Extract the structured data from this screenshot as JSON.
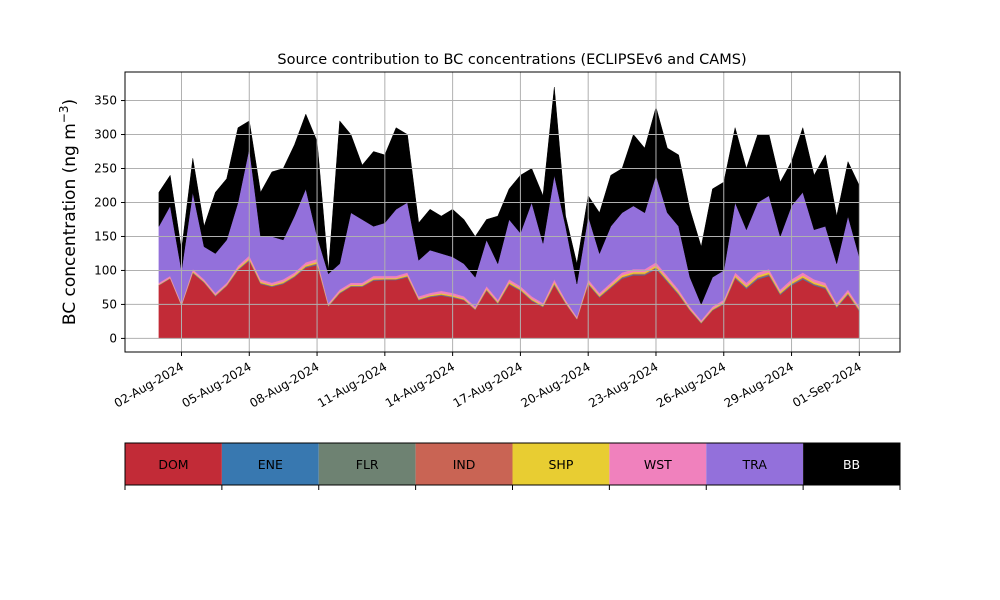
{
  "chart_data": {
    "type": "area",
    "stacked": true,
    "title": "Source contribution to BC concentrations (ECLIPSEv6 and CAMS)",
    "ylabel_main": "BC concentration (ng m",
    "ylabel_sup": "−3",
    "ylabel_close": ")",
    "xlabel": "",
    "ylim": [
      -20,
      392
    ],
    "yticks": [
      0,
      50,
      100,
      150,
      200,
      250,
      300,
      350
    ],
    "xlim": [
      -1.5,
      32.8
    ],
    "xtick_positions": [
      1,
      4,
      7,
      10,
      13,
      16,
      19,
      22,
      25,
      28,
      31
    ],
    "xtick_labels": [
      "02-Aug-2024",
      "05-Aug-2024",
      "08-Aug-2024",
      "11-Aug-2024",
      "14-Aug-2024",
      "17-Aug-2024",
      "20-Aug-2024",
      "23-Aug-2024",
      "26-Aug-2024",
      "29-Aug-2024",
      "01-Sep-2024"
    ],
    "grid": true,
    "legend": "colorbar-below",
    "series_order": [
      "DOM",
      "ENE",
      "FLR",
      "IND",
      "SHP",
      "WST",
      "TRA",
      "BB"
    ],
    "colors": {
      "DOM": "#c22b37",
      "ENE": "#3878b0",
      "FLR": "#6e8272",
      "IND": "#c96454",
      "SHP": "#e8cd32",
      "WST": "#f081bd",
      "TRA": "#9370db",
      "BB": "#000000"
    },
    "x_day": [
      0.0,
      0.5,
      1.0,
      1.5,
      2.0,
      2.5,
      3.0,
      3.5,
      4.0,
      4.5,
      5.0,
      5.5,
      6.0,
      6.5,
      7.0,
      7.5,
      8.0,
      8.5,
      9.0,
      9.5,
      10.0,
      10.5,
      11.0,
      11.5,
      12.0,
      12.5,
      13.0,
      13.5,
      14.0,
      14.5,
      15.0,
      15.5,
      16.0,
      16.5,
      17.0,
      17.5,
      18.0,
      18.5,
      19.0,
      19.5,
      20.0,
      20.5,
      21.0,
      21.5,
      22.0,
      22.5,
      23.0,
      23.5,
      24.0,
      24.5,
      25.0,
      25.5,
      26.0,
      26.5,
      27.0,
      27.5,
      28.0,
      28.5,
      29.0,
      29.5,
      30.0,
      30.5,
      31.0
    ],
    "base_cum": [
      80,
      90,
      50,
      100,
      85,
      65,
      80,
      105,
      120,
      85,
      80,
      85,
      95,
      110,
      115,
      50,
      70,
      80,
      80,
      90,
      90,
      90,
      95,
      60,
      65,
      68,
      65,
      60,
      45,
      75,
      55,
      85,
      75,
      60,
      50,
      85,
      55,
      30,
      85,
      65,
      80,
      95,
      100,
      100,
      110,
      90,
      70,
      45,
      25,
      45,
      55,
      95,
      80,
      95,
      100,
      70,
      85,
      95,
      85,
      80,
      50,
      70,
      45
    ],
    "dom": [
      78,
      88,
      48,
      96,
      82,
      62,
      77,
      100,
      114,
      80,
      76,
      80,
      90,
      104,
      108,
      47,
      66,
      76,
      76,
      85,
      86,
      86,
      90,
      56,
      61,
      63,
      60,
      56,
      42,
      70,
      51,
      79,
      70,
      55,
      46,
      78,
      51,
      28,
      79,
      60,
      74,
      88,
      93,
      93,
      102,
      83,
      64,
      41,
      22,
      41,
      50,
      88,
      73,
      87,
      92,
      64,
      78,
      87,
      78,
      73,
      45,
      64,
      40
    ],
    "tra_top": [
      165,
      195,
      100,
      215,
      135,
      125,
      145,
      200,
      280,
      150,
      150,
      145,
      180,
      220,
      150,
      95,
      110,
      185,
      175,
      165,
      170,
      190,
      200,
      115,
      130,
      125,
      120,
      110,
      90,
      145,
      110,
      175,
      155,
      200,
      140,
      240,
      165,
      80,
      180,
      125,
      165,
      185,
      195,
      185,
      240,
      185,
      165,
      90,
      50,
      90,
      100,
      200,
      160,
      200,
      210,
      150,
      195,
      215,
      160,
      165,
      110,
      180,
      120
    ],
    "bb_top": [
      215,
      240,
      130,
      265,
      165,
      215,
      235,
      310,
      320,
      215,
      245,
      250,
      285,
      330,
      290,
      100,
      320,
      300,
      255,
      275,
      270,
      310,
      300,
      170,
      190,
      180,
      190,
      175,
      150,
      175,
      180,
      220,
      240,
      250,
      210,
      370,
      180,
      110,
      210,
      185,
      240,
      250,
      300,
      280,
      340,
      280,
      270,
      190,
      135,
      220,
      230,
      310,
      250,
      300,
      300,
      230,
      260,
      310,
      240,
      270,
      180,
      260,
      225
    ]
  },
  "legend_items": [
    {
      "label": "DOM",
      "text_color": "#000000"
    },
    {
      "label": "ENE",
      "text_color": "#000000"
    },
    {
      "label": "FLR",
      "text_color": "#000000"
    },
    {
      "label": "IND",
      "text_color": "#000000"
    },
    {
      "label": "SHP",
      "text_color": "#000000"
    },
    {
      "label": "WST",
      "text_color": "#000000"
    },
    {
      "label": "TRA",
      "text_color": "#000000"
    },
    {
      "label": "BB",
      "text_color": "#ffffff"
    }
  ]
}
